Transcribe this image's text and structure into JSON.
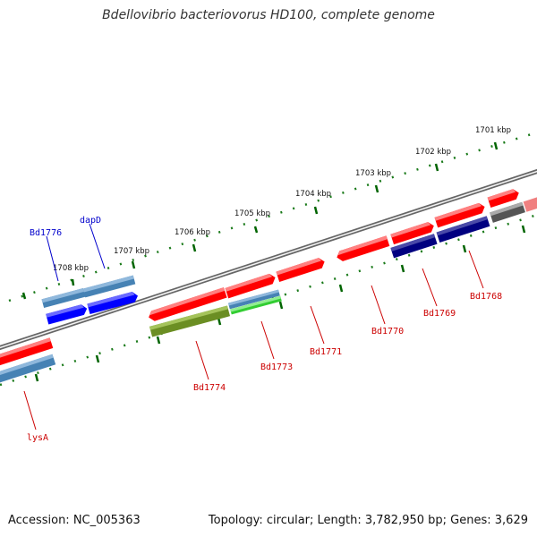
{
  "title": "Bdellovibrio bacteriovorus HD100, complete genome",
  "footer": {
    "accession": "Accession: NC_005363",
    "stats": "Topology: circular; Length: 3,782,950 bp; Genes: 3,629"
  },
  "scale_labels": [
    "1701 kbp",
    "1702 kbp",
    "1703 kbp",
    "1704 kbp",
    "1705 kbp",
    "1706 kbp",
    "1707 kbp",
    "1708 kbp"
  ],
  "gene_labels": [
    {
      "name": "Bd1776",
      "color": "#0000cc"
    },
    {
      "name": "dapD",
      "color": "#0000cc"
    },
    {
      "name": "Bd1768",
      "color": "#cc0000"
    },
    {
      "name": "Bd1769",
      "color": "#cc0000"
    },
    {
      "name": "Bd1770",
      "color": "#cc0000"
    },
    {
      "name": "Bd1771",
      "color": "#cc0000"
    },
    {
      "name": "Bd1773",
      "color": "#cc0000"
    },
    {
      "name": "Bd1774",
      "color": "#cc0000"
    },
    {
      "name": "lysA",
      "color": "#cc0000"
    }
  ],
  "colors": {
    "red_feature": "#ff0000",
    "blue_feature": "#0000ff",
    "steel_feature": "#4682b4",
    "navy_feature": "#000080",
    "olive_feature": "#6b8e23",
    "green_feature": "#32cd32",
    "grey_feature": "#666666",
    "pink_feature": "#f08080",
    "backbone": "#777777",
    "tick": "#006400"
  }
}
